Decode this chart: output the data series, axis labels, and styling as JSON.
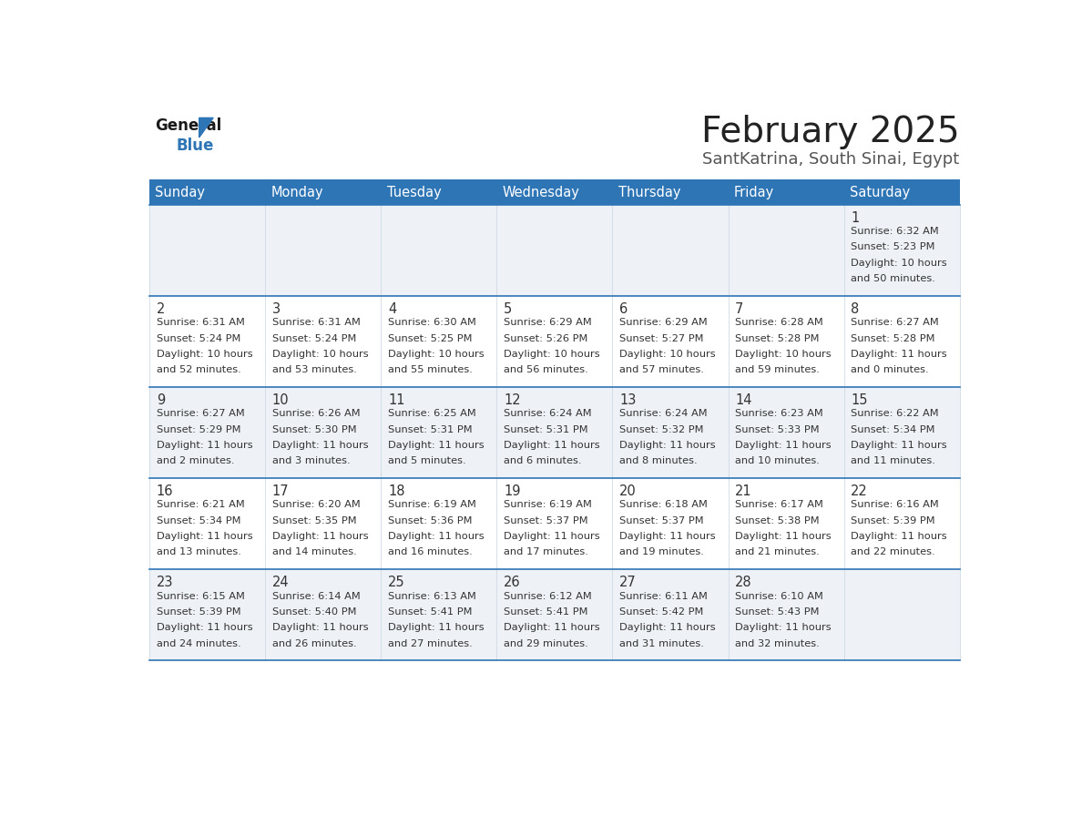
{
  "title": "February 2025",
  "subtitle": "SantKatrina, South Sinai, Egypt",
  "days_of_week": [
    "Sunday",
    "Monday",
    "Tuesday",
    "Wednesday",
    "Thursday",
    "Friday",
    "Saturday"
  ],
  "header_bg": "#2e75b6",
  "header_text": "#ffffff",
  "cell_bg_light": "#eef2f7",
  "cell_bg_white": "#ffffff",
  "row_line_color": "#2e75b6",
  "text_color": "#333333",
  "title_color": "#222222",
  "subtitle_color": "#555555",
  "logo_general_color": "#1a1a1a",
  "logo_blue_color": "#2e75b6",
  "logo_triangle_color": "#2e75b6",
  "calendar": [
    [
      null,
      null,
      null,
      null,
      null,
      null,
      {
        "day": 1,
        "sunrise": "6:32 AM",
        "sunset": "5:23 PM",
        "daylight_line1": "Daylight: 10 hours",
        "daylight_line2": "and 50 minutes."
      }
    ],
    [
      {
        "day": 2,
        "sunrise": "6:31 AM",
        "sunset": "5:24 PM",
        "daylight_line1": "Daylight: 10 hours",
        "daylight_line2": "and 52 minutes."
      },
      {
        "day": 3,
        "sunrise": "6:31 AM",
        "sunset": "5:24 PM",
        "daylight_line1": "Daylight: 10 hours",
        "daylight_line2": "and 53 minutes."
      },
      {
        "day": 4,
        "sunrise": "6:30 AM",
        "sunset": "5:25 PM",
        "daylight_line1": "Daylight: 10 hours",
        "daylight_line2": "and 55 minutes."
      },
      {
        "day": 5,
        "sunrise": "6:29 AM",
        "sunset": "5:26 PM",
        "daylight_line1": "Daylight: 10 hours",
        "daylight_line2": "and 56 minutes."
      },
      {
        "day": 6,
        "sunrise": "6:29 AM",
        "sunset": "5:27 PM",
        "daylight_line1": "Daylight: 10 hours",
        "daylight_line2": "and 57 minutes."
      },
      {
        "day": 7,
        "sunrise": "6:28 AM",
        "sunset": "5:28 PM",
        "daylight_line1": "Daylight: 10 hours",
        "daylight_line2": "and 59 minutes."
      },
      {
        "day": 8,
        "sunrise": "6:27 AM",
        "sunset": "5:28 PM",
        "daylight_line1": "Daylight: 11 hours",
        "daylight_line2": "and 0 minutes."
      }
    ],
    [
      {
        "day": 9,
        "sunrise": "6:27 AM",
        "sunset": "5:29 PM",
        "daylight_line1": "Daylight: 11 hours",
        "daylight_line2": "and 2 minutes."
      },
      {
        "day": 10,
        "sunrise": "6:26 AM",
        "sunset": "5:30 PM",
        "daylight_line1": "Daylight: 11 hours",
        "daylight_line2": "and 3 minutes."
      },
      {
        "day": 11,
        "sunrise": "6:25 AM",
        "sunset": "5:31 PM",
        "daylight_line1": "Daylight: 11 hours",
        "daylight_line2": "and 5 minutes."
      },
      {
        "day": 12,
        "sunrise": "6:24 AM",
        "sunset": "5:31 PM",
        "daylight_line1": "Daylight: 11 hours",
        "daylight_line2": "and 6 minutes."
      },
      {
        "day": 13,
        "sunrise": "6:24 AM",
        "sunset": "5:32 PM",
        "daylight_line1": "Daylight: 11 hours",
        "daylight_line2": "and 8 minutes."
      },
      {
        "day": 14,
        "sunrise": "6:23 AM",
        "sunset": "5:33 PM",
        "daylight_line1": "Daylight: 11 hours",
        "daylight_line2": "and 10 minutes."
      },
      {
        "day": 15,
        "sunrise": "6:22 AM",
        "sunset": "5:34 PM",
        "daylight_line1": "Daylight: 11 hours",
        "daylight_line2": "and 11 minutes."
      }
    ],
    [
      {
        "day": 16,
        "sunrise": "6:21 AM",
        "sunset": "5:34 PM",
        "daylight_line1": "Daylight: 11 hours",
        "daylight_line2": "and 13 minutes."
      },
      {
        "day": 17,
        "sunrise": "6:20 AM",
        "sunset": "5:35 PM",
        "daylight_line1": "Daylight: 11 hours",
        "daylight_line2": "and 14 minutes."
      },
      {
        "day": 18,
        "sunrise": "6:19 AM",
        "sunset": "5:36 PM",
        "daylight_line1": "Daylight: 11 hours",
        "daylight_line2": "and 16 minutes."
      },
      {
        "day": 19,
        "sunrise": "6:19 AM",
        "sunset": "5:37 PM",
        "daylight_line1": "Daylight: 11 hours",
        "daylight_line2": "and 17 minutes."
      },
      {
        "day": 20,
        "sunrise": "6:18 AM",
        "sunset": "5:37 PM",
        "daylight_line1": "Daylight: 11 hours",
        "daylight_line2": "and 19 minutes."
      },
      {
        "day": 21,
        "sunrise": "6:17 AM",
        "sunset": "5:38 PM",
        "daylight_line1": "Daylight: 11 hours",
        "daylight_line2": "and 21 minutes."
      },
      {
        "day": 22,
        "sunrise": "6:16 AM",
        "sunset": "5:39 PM",
        "daylight_line1": "Daylight: 11 hours",
        "daylight_line2": "and 22 minutes."
      }
    ],
    [
      {
        "day": 23,
        "sunrise": "6:15 AM",
        "sunset": "5:39 PM",
        "daylight_line1": "Daylight: 11 hours",
        "daylight_line2": "and 24 minutes."
      },
      {
        "day": 24,
        "sunrise": "6:14 AM",
        "sunset": "5:40 PM",
        "daylight_line1": "Daylight: 11 hours",
        "daylight_line2": "and 26 minutes."
      },
      {
        "day": 25,
        "sunrise": "6:13 AM",
        "sunset": "5:41 PM",
        "daylight_line1": "Daylight: 11 hours",
        "daylight_line2": "and 27 minutes."
      },
      {
        "day": 26,
        "sunrise": "6:12 AM",
        "sunset": "5:41 PM",
        "daylight_line1": "Daylight: 11 hours",
        "daylight_line2": "and 29 minutes."
      },
      {
        "day": 27,
        "sunrise": "6:11 AM",
        "sunset": "5:42 PM",
        "daylight_line1": "Daylight: 11 hours",
        "daylight_line2": "and 31 minutes."
      },
      {
        "day": 28,
        "sunrise": "6:10 AM",
        "sunset": "5:43 PM",
        "daylight_line1": "Daylight: 11 hours",
        "daylight_line2": "and 32 minutes."
      },
      null
    ]
  ]
}
